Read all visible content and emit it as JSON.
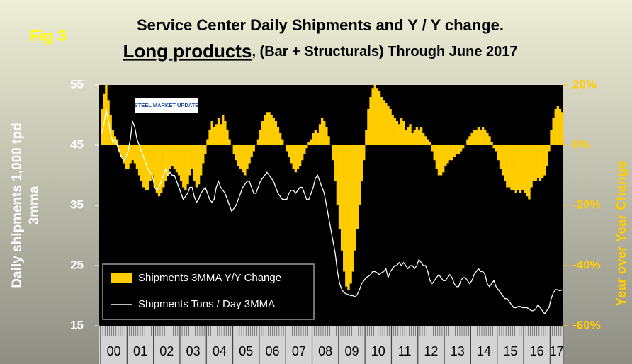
{
  "chart_data": {
    "type": "combo",
    "figure_label": "Fig 3",
    "title": "Service Center Daily Shipments and Y / Y change.",
    "subtitle_emphasis": "Long products",
    "subtitle": ", (Bar + Structurals) Through June 2017",
    "logo": "STEEL MARKET UPDATE",
    "ylabel": [
      "Daily shipments 1,000 tpd",
      "3mma"
    ],
    "y2label": "Year over Year Change",
    "ylim": [
      15,
      55
    ],
    "yticks": [
      15,
      25,
      35,
      45,
      55
    ],
    "y2lim": [
      -60,
      20
    ],
    "y2ticks": [
      {
        "value": -60,
        "label": "-60%"
      },
      {
        "value": -40,
        "label": "-40%"
      },
      {
        "value": -20,
        "label": "-20%"
      },
      {
        "value": 0,
        "label": "0%"
      },
      {
        "value": 20,
        "label": "20%"
      }
    ],
    "legend": "lower left",
    "categories": [
      null,
      null,
      null,
      null,
      null,
      "00",
      null,
      null,
      null,
      null,
      null,
      null,
      null,
      null,
      null,
      null,
      null,
      "01",
      null,
      null,
      null,
      null,
      null,
      null,
      null,
      null,
      null,
      null,
      null,
      "02",
      null,
      null,
      null,
      null,
      null,
      null,
      null,
      null,
      null,
      null,
      null,
      "03",
      null,
      null,
      null,
      null,
      null,
      null,
      null,
      null,
      null,
      null,
      null,
      "04",
      null,
      null,
      null,
      null,
      null,
      null,
      null,
      null,
      null,
      null,
      null,
      "05",
      null,
      null,
      null,
      null,
      null,
      null,
      null,
      null,
      null,
      null,
      null,
      "06",
      null,
      null,
      null,
      null,
      null,
      null,
      null,
      null,
      null,
      null,
      null,
      "07",
      null,
      null,
      null,
      null,
      null,
      null,
      null,
      null,
      null,
      null,
      null,
      "08",
      null,
      null,
      null,
      null,
      null,
      null,
      null,
      null,
      null,
      null,
      null,
      "09",
      null,
      null,
      null,
      null,
      null,
      null,
      null,
      null,
      null,
      null,
      null,
      "10",
      null,
      null,
      null,
      null,
      null,
      null,
      null,
      null,
      null,
      null,
      null,
      "11",
      null,
      null,
      null,
      null,
      null,
      null,
      null,
      null,
      null,
      null,
      null,
      "12",
      null,
      null,
      null,
      null,
      null,
      null,
      null,
      null,
      null,
      null,
      null,
      "13",
      null,
      null,
      null,
      null,
      null,
      null,
      null,
      null,
      null,
      null,
      null,
      "14",
      null,
      null,
      null,
      null,
      null,
      null,
      null,
      null,
      null,
      null,
      null,
      "15",
      null,
      null,
      null,
      null,
      null,
      null,
      null,
      null,
      null,
      null,
      null,
      "16",
      null,
      null,
      null,
      null,
      null,
      null,
      null,
      null,
      "17",
      null,
      null,
      null
    ],
    "series": [
      {
        "name": "Shipments 3MMA Y/Y Change",
        "type": "bar",
        "axis": "y2",
        "color": "#ffcc00",
        "values": [
          12,
          17,
          20,
          15,
          10,
          5,
          3,
          2,
          -2,
          -4,
          -6,
          -8,
          -8,
          -6,
          -5,
          -6,
          -8,
          -10,
          -12,
          -14,
          -15,
          -15,
          -12,
          -10,
          -14,
          -16,
          -17,
          -16,
          -14,
          -12,
          -10,
          -8,
          -7,
          -8,
          -9,
          -10,
          -12,
          -14,
          -15,
          -13,
          -10,
          -8,
          -12,
          -14,
          -13,
          -10,
          -6,
          -3,
          2,
          5,
          8,
          6,
          7,
          9,
          7,
          10,
          8,
          5,
          2,
          0,
          -3,
          -5,
          -7,
          -8,
          -9,
          -10,
          -8,
          -6,
          -4,
          -2,
          0,
          2,
          5,
          8,
          10,
          11,
          11,
          10,
          9,
          8,
          6,
          4,
          2,
          0,
          -2,
          -4,
          -6,
          -8,
          -9,
          -8,
          -7,
          -5,
          -3,
          -1,
          1,
          2,
          4,
          5,
          4,
          7,
          9,
          8,
          6,
          3,
          0,
          -5,
          -12,
          -20,
          -28,
          -35,
          -42,
          -47,
          -48,
          -46,
          -42,
          -35,
          -28,
          -20,
          -12,
          -5,
          5,
          12,
          16,
          19,
          20,
          19,
          18,
          16,
          15,
          14,
          13,
          12,
          10,
          9,
          8,
          7,
          9,
          8,
          5,
          6,
          7,
          4,
          5,
          6,
          5,
          6,
          4,
          3,
          2,
          1,
          -2,
          -5,
          -8,
          -10,
          -10,
          -9,
          -7,
          -6,
          -5,
          -5,
          -4,
          -3,
          -3,
          -2,
          -1,
          0,
          2,
          3,
          4,
          5,
          5,
          6,
          5,
          6,
          5,
          4,
          3,
          1,
          -1,
          -2,
          -5,
          -8,
          -10,
          -12,
          -14,
          -14,
          -15,
          -15,
          -16,
          -15,
          -16,
          -15,
          -16,
          -17,
          -18,
          -14,
          -12,
          -12,
          -11,
          -12,
          -11,
          -10,
          -7,
          -2,
          5,
          9,
          12,
          13,
          12,
          11
        ]
      },
      {
        "name": "Shipments Tons / Day 3MMA",
        "type": "line",
        "axis": "y",
        "color": "#ffffff",
        "values": [
          47,
          48.5,
          51,
          49,
          47,
          45.5,
          46,
          45,
          44,
          43,
          42.5,
          43,
          44,
          46,
          49,
          48,
          46,
          45,
          44,
          43,
          42,
          41,
          40.5,
          40,
          38,
          37.5,
          38,
          39,
          40,
          41,
          40,
          40.5,
          40,
          40,
          39,
          38,
          37,
          36,
          36.5,
          37,
          38,
          38,
          36.5,
          35.5,
          36,
          37,
          37.5,
          38,
          37,
          36,
          35.5,
          36,
          38,
          39,
          38,
          37.5,
          37,
          36,
          35,
          34,
          34.5,
          35,
          36,
          37,
          38,
          38.5,
          39,
          39,
          38,
          37,
          37,
          38,
          39,
          39.5,
          40,
          40.5,
          40,
          39.5,
          39,
          38,
          37,
          36.5,
          36,
          36,
          36,
          37,
          37.5,
          37.5,
          37,
          37.5,
          38,
          38,
          37,
          36,
          36,
          37,
          38,
          39.5,
          40,
          39,
          38,
          37,
          35,
          33,
          31,
          29,
          27,
          24,
          22,
          21,
          20.5,
          20.3,
          20.2,
          20,
          20,
          19.8,
          20.2,
          21,
          22,
          22.5,
          23,
          23.2,
          23.5,
          24,
          24,
          23.8,
          23.5,
          23.8,
          24,
          24.5,
          23,
          24,
          24.5,
          25,
          25,
          25.5,
          25,
          25.5,
          25,
          24.5,
          25,
          25,
          24.5,
          25,
          26,
          25.5,
          25,
          25,
          24,
          22.5,
          22,
          22.5,
          23,
          23.5,
          23,
          22.5,
          22.5,
          23,
          23.5,
          23,
          22,
          21.5,
          21.5,
          22.5,
          23,
          23,
          22.5,
          22,
          22.5,
          23.5,
          24,
          24.5,
          24,
          24,
          23.5,
          22,
          21.5,
          22,
          22.5,
          21.5,
          21,
          20.5,
          20,
          19.5,
          19.5,
          19,
          18.5,
          18,
          18,
          18.2,
          18.2,
          18,
          18,
          18,
          17.8,
          17.5,
          17.5,
          17.8,
          18.5,
          18,
          17.5,
          17,
          17.5,
          18,
          19.5,
          20.5,
          21,
          21,
          20.8,
          21
        ]
      }
    ]
  }
}
